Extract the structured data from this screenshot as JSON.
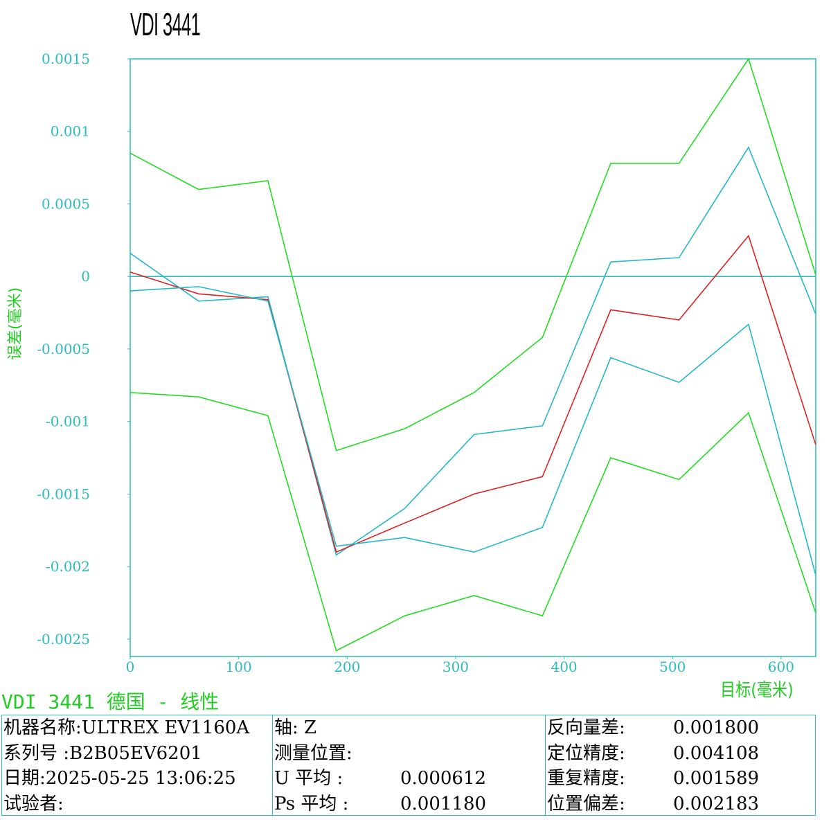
{
  "header": {
    "title": "VDI 3441",
    "subtitle": "VDI 3441 德国 - 线性"
  },
  "colors": {
    "axis": "#2bbcbc",
    "band": "#22dd22",
    "mean": "#e02020",
    "dir": "#22b8c8"
  },
  "chart_data": {
    "type": "line",
    "title": "VDI 3441",
    "xlabel": "目标(毫米)",
    "ylabel": "误差(毫米)",
    "xlim": [
      0,
      632
    ],
    "ylim": [
      -0.00262,
      0.0015
    ],
    "xticks": [
      0,
      100,
      200,
      300,
      400,
      500,
      600
    ],
    "xtick_labels": [
      "0",
      "100",
      "200",
      "300",
      "400",
      "500",
      "600"
    ],
    "yticks": [
      0.0015,
      0.001,
      0.0005,
      0,
      -0.0005,
      -0.001,
      -0.0015,
      -0.002,
      -0.0025
    ],
    "ytick_labels": [
      "0.0015",
      "0.001",
      "0.0005",
      "0",
      "-0.0005",
      "-0.001",
      "-0.0015",
      "-0.002",
      "-0.0025"
    ],
    "x": [
      0,
      63,
      127,
      190,
      253,
      317,
      380,
      443,
      506,
      570,
      632
    ],
    "series": [
      {
        "role": "upper-band",
        "color": "#22dd22",
        "values": [
          0.00085,
          0.0006,
          0.00066,
          -0.0012,
          -0.00105,
          -0.0008,
          -0.00042,
          0.00078,
          0.00078,
          0.0015,
          1e-05
        ]
      },
      {
        "role": "forward",
        "color": "#22b8c8",
        "values": [
          0.00016,
          -0.00017,
          -0.00014,
          -0.00192,
          -0.0016,
          -0.00109,
          -0.00103,
          0.0001,
          0.00013,
          0.00089,
          -0.00026
        ]
      },
      {
        "role": "mean",
        "color": "#e02020",
        "values": [
          3e-05,
          -0.00012,
          -0.00016,
          -0.0019,
          -0.0017,
          -0.0015,
          -0.00138,
          -0.00023,
          -0.0003,
          0.00028,
          -0.00116
        ]
      },
      {
        "role": "backward",
        "color": "#22b8c8",
        "values": [
          -0.0001,
          -7e-05,
          -0.00017,
          -0.00186,
          -0.0018,
          -0.0019,
          -0.00173,
          -0.00056,
          -0.00073,
          -0.00033,
          -0.00206
        ]
      },
      {
        "role": "lower-band",
        "color": "#22dd22",
        "values": [
          -0.0008,
          -0.00083,
          -0.00096,
          -0.00258,
          -0.00234,
          -0.0022,
          -0.00234,
          -0.00125,
          -0.0014,
          -0.00094,
          -0.00232
        ]
      }
    ],
    "grid": false,
    "zero_line": true
  },
  "info": {
    "col1": [
      {
        "k": "机器名称:",
        "v": "ULTREX EV1160A"
      },
      {
        "k": "系列号  :",
        "v": "B2B05EV6201"
      },
      {
        "k": "日期:",
        "v": "2025-05-25 13:06:25"
      },
      {
        "k": "试验者:",
        "v": ""
      }
    ],
    "col2": [
      {
        "k": "轴: Z",
        "v": ""
      },
      {
        "k": "测量位置:",
        "v": ""
      },
      {
        "k": "U 平均  :",
        "v": "0.000612"
      },
      {
        "k": "Ps 平均 :",
        "v": "0.001180"
      }
    ],
    "col3": [
      {
        "k": "反向量差:",
        "v": "0.001800"
      },
      {
        "k": "定位精度:",
        "v": "0.004108"
      },
      {
        "k": "重复精度:",
        "v": "0.001589"
      },
      {
        "k": "位置偏差:",
        "v": "0.002183"
      }
    ]
  }
}
